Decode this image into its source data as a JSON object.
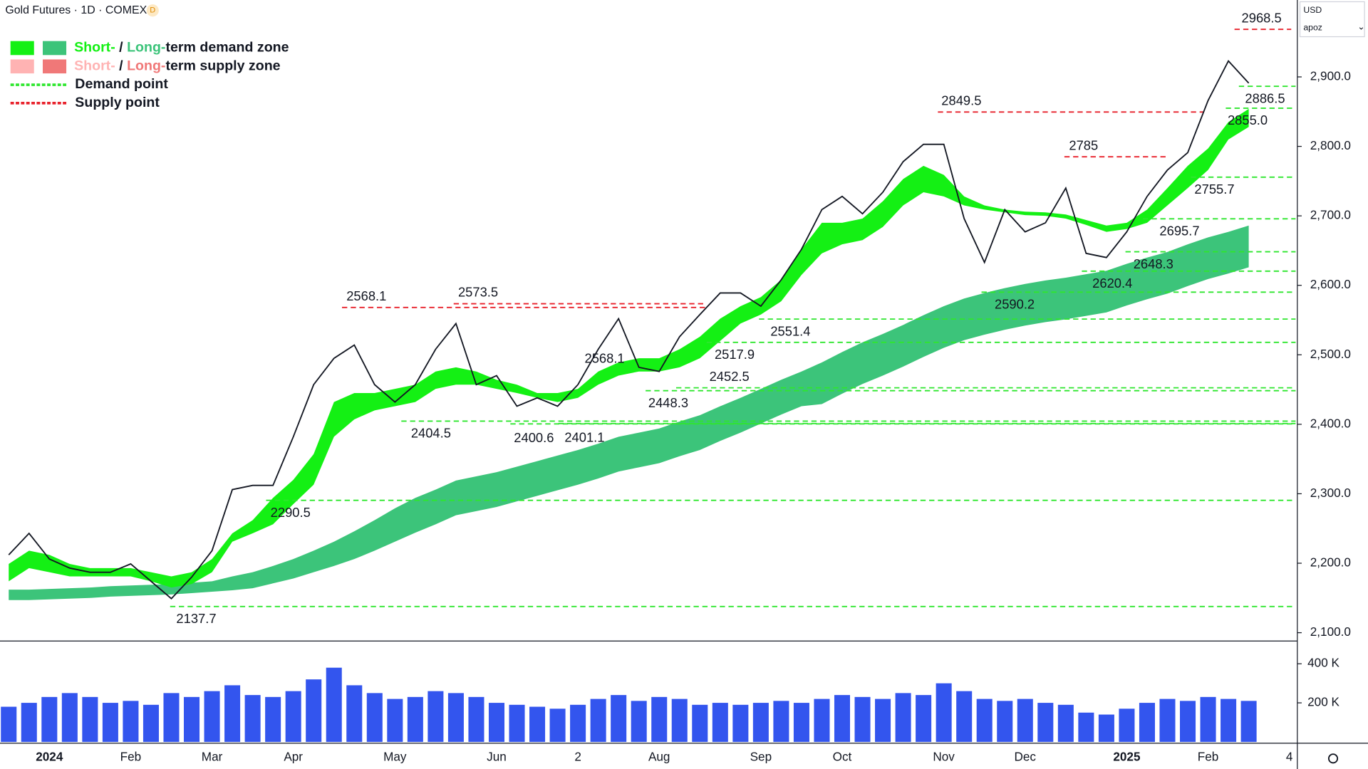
{
  "chart_data": {
    "type": "line",
    "title": "Gold Futures · 1D · COMEX",
    "badge": "D",
    "currency": "USD",
    "currency_sub": "apoz",
    "categories": [
      null,
      null,
      "2024",
      null,
      null,
      null,
      "Feb",
      null,
      null,
      null,
      "Mar",
      null,
      null,
      null,
      "Apr",
      null,
      null,
      null,
      null,
      "May",
      null,
      null,
      null,
      null,
      "Jun",
      null,
      null,
      null,
      "2",
      null,
      null,
      null,
      "Aug",
      null,
      null,
      null,
      null,
      "Sep",
      null,
      null,
      null,
      "Oct",
      null,
      null,
      null,
      null,
      "Nov",
      null,
      null,
      null,
      "Dec",
      null,
      null,
      null,
      null,
      "2025",
      null,
      null,
      null,
      "Feb",
      null,
      null,
      null,
      "4"
    ],
    "close": {
      "color": "#131722",
      "values": [
        2212,
        2243,
        2206,
        2193,
        2187,
        2187,
        2199,
        2174,
        2149,
        2180,
        2218,
        2306,
        2312,
        2312,
        2382,
        2457,
        2495,
        2514,
        2457,
        2432,
        2457,
        2508,
        2545,
        2457,
        2470,
        2426,
        2438,
        2426,
        2457,
        2508,
        2552,
        2482,
        2476,
        2526,
        2558,
        2589,
        2589,
        2570,
        2608,
        2652,
        2709,
        2728,
        2703,
        2734,
        2778,
        2803,
        2803,
        2696,
        2633,
        2709,
        2677,
        2690,
        2740,
        2646,
        2640,
        2677,
        2728,
        2766,
        2791,
        2866,
        2923,
        2891,
        null,
        null
      ]
    },
    "short_term_zone": {
      "color": "#14f014",
      "upper": [
        2199,
        2218,
        2212,
        2199,
        2193,
        2193,
        2193,
        2187,
        2181,
        2187,
        2206,
        2243,
        2262,
        2294,
        2320,
        2357,
        2432,
        2445,
        2445,
        2451,
        2457,
        2476,
        2482,
        2476,
        2464,
        2457,
        2445,
        2445,
        2451,
        2476,
        2489,
        2495,
        2495,
        2508,
        2526,
        2552,
        2570,
        2583,
        2608,
        2652,
        2690,
        2690,
        2696,
        2721,
        2753,
        2772,
        2759,
        2728,
        2715,
        2709,
        2706,
        2705,
        2702,
        2694,
        2686,
        2690,
        2709,
        2740,
        2772,
        2797,
        2835,
        2854,
        null,
        null
      ],
      "lower": [
        2174,
        2193,
        2187,
        2181,
        2181,
        2181,
        2181,
        2174,
        2165,
        2170,
        2187,
        2231,
        2243,
        2256,
        2285,
        2313,
        2382,
        2407,
        2420,
        2426,
        2432,
        2451,
        2457,
        2457,
        2451,
        2445,
        2438,
        2432,
        2438,
        2457,
        2470,
        2476,
        2476,
        2482,
        2495,
        2520,
        2545,
        2558,
        2577,
        2615,
        2646,
        2659,
        2665,
        2684,
        2715,
        2734,
        2728,
        2715,
        2709,
        2705,
        2701,
        2700,
        2696,
        2687,
        2677,
        2681,
        2690,
        2715,
        2740,
        2766,
        2810,
        2828,
        null,
        null
      ]
    },
    "long_term_zone": {
      "color": "#3cc47a",
      "upper": [
        2162,
        2162,
        2163,
        2164,
        2165,
        2167,
        2168,
        2169,
        2170,
        2172,
        2174,
        2181,
        2187,
        2196,
        2206,
        2218,
        2231,
        2246,
        2262,
        2279,
        2294,
        2306,
        2319,
        2325,
        2331,
        2339,
        2347,
        2355,
        2363,
        2372,
        2382,
        2388,
        2394,
        2404,
        2413,
        2426,
        2438,
        2451,
        2464,
        2476,
        2489,
        2504,
        2518,
        2530,
        2543,
        2557,
        2570,
        2581,
        2589,
        2596,
        2602,
        2607,
        2611,
        2616,
        2621,
        2631,
        2640,
        2648,
        2659,
        2669,
        2677,
        2686,
        null,
        null
      ],
      "lower": [
        2147,
        2147,
        2148,
        2149,
        2150,
        2152,
        2153,
        2154,
        2155,
        2157,
        2159,
        2161,
        2164,
        2171,
        2178,
        2187,
        2196,
        2206,
        2218,
        2231,
        2244,
        2256,
        2269,
        2275,
        2281,
        2289,
        2297,
        2305,
        2313,
        2322,
        2332,
        2338,
        2344,
        2354,
        2363,
        2376,
        2388,
        2401,
        2414,
        2426,
        2429,
        2444,
        2458,
        2470,
        2483,
        2497,
        2510,
        2521,
        2529,
        2536,
        2542,
        2547,
        2551,
        2556,
        2561,
        2571,
        2580,
        2588,
        2599,
        2609,
        2617,
        2626,
        null,
        null
      ]
    },
    "ylim": [
      2088.7,
      3010.7
    ],
    "yticks": [
      {
        "value": 2100,
        "label": "2,100.0"
      },
      {
        "value": 2200,
        "label": "2,200.0"
      },
      {
        "value": 2300,
        "label": "2,300.0"
      },
      {
        "value": 2400,
        "label": "2,400.0"
      },
      {
        "value": 2500,
        "label": "2,500.0"
      },
      {
        "value": 2600,
        "label": "2,600.0"
      },
      {
        "value": 2700,
        "label": "2,700.0"
      },
      {
        "value": 2800,
        "label": "2,800.0"
      },
      {
        "value": 2900,
        "label": "2,900.0"
      }
    ],
    "demand_points": {
      "color": "#2ee62e",
      "levels": [
        2137.7,
        2290.5,
        2404.5,
        2400.6,
        2401.1,
        2448.3,
        2452.5,
        2517.9,
        2551.4,
        2590.2,
        2620.4,
        2648.3,
        2695.7,
        2755.7,
        {
          "value": 2855,
          "label": "2855.0"
        },
        2886.5
      ]
    },
    "supply_points": {
      "color": "#e8202a",
      "levels": [
        2568.1,
        2573.5,
        2849.5,
        2785,
        2968.5
      ]
    },
    "annotations": [
      "2568.1"
    ],
    "legend": [
      {
        "swatches": [
          "#14f014",
          "#3cc47a"
        ],
        "short": "Short-",
        "sep": " / ",
        "long": "Long-",
        "rest": "term demand zone"
      },
      {
        "swatches": [
          "#ffb3b3",
          "#f07878"
        ],
        "short": "Short-",
        "sep": " / ",
        "long": "Long-",
        "rest": "term supply zone"
      },
      {
        "dash": "#2ee62e",
        "text": "Demand point"
      },
      {
        "dash": "#e8202a",
        "text": "Supply point"
      }
    ],
    "volume": {
      "color": "#3355ee",
      "ylim": [
        0,
        510000
      ],
      "yticks": [
        {
          "value": 200000,
          "label": "200 K"
        },
        {
          "value": 400000,
          "label": "400 K"
        }
      ],
      "values": [
        180000,
        200000,
        230000,
        250000,
        230000,
        200000,
        210000,
        190000,
        250000,
        230000,
        260000,
        290000,
        240000,
        230000,
        260000,
        320000,
        380000,
        290000,
        250000,
        220000,
        230000,
        260000,
        250000,
        230000,
        200000,
        190000,
        180000,
        170000,
        190000,
        220000,
        240000,
        210000,
        230000,
        220000,
        190000,
        200000,
        190000,
        200000,
        210000,
        200000,
        220000,
        240000,
        230000,
        220000,
        250000,
        240000,
        300000,
        260000,
        220000,
        210000,
        220000,
        200000,
        190000,
        150000,
        140000,
        170000,
        200000,
        220000,
        210000,
        230000,
        220000,
        210000,
        null,
        null
      ]
    }
  }
}
